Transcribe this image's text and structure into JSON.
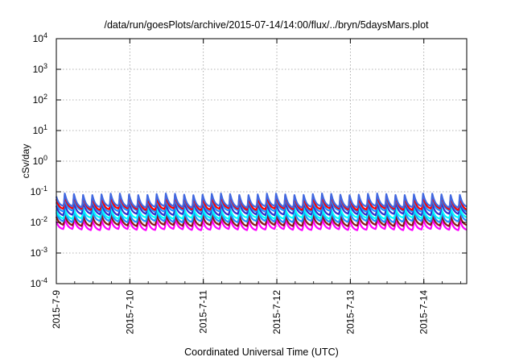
{
  "chart_data": {
    "type": "line",
    "title": "/data/run/goesPlots/archive/2015-07-14/14:00/flux/../bryn/5daysMars.plot",
    "xlabel": "Coordinated Universal Time (UTC)",
    "ylabel": "cSv/day",
    "y_scale": "log",
    "ylim": [
      0.0001,
      10000
    ],
    "y_ticks": [
      {
        "value": 0.0001,
        "base": "10",
        "exp": "-4"
      },
      {
        "value": 0.001,
        "base": "10",
        "exp": "-3"
      },
      {
        "value": 0.01,
        "base": "10",
        "exp": "-2"
      },
      {
        "value": 0.1,
        "base": "10",
        "exp": "-1"
      },
      {
        "value": 1,
        "base": "10",
        "exp": "0"
      },
      {
        "value": 10,
        "base": "10",
        "exp": "1"
      },
      {
        "value": 100,
        "base": "10",
        "exp": "2"
      },
      {
        "value": 1000,
        "base": "10",
        "exp": "3"
      },
      {
        "value": 10000,
        "base": "10",
        "exp": "4"
      }
    ],
    "xlim": [
      "2015-07-09T00:00",
      "2015-07-14T14:00"
    ],
    "x_tick_labels": [
      "2015-7-9",
      "2015-7-10",
      "2015-7-11",
      "2015-7-12",
      "2015-7-13",
      "2015-7-14"
    ],
    "grid": true,
    "approx_peaks_per_day": 8,
    "series": [
      {
        "color": "#ff00ff",
        "baseline": 0.0055,
        "peak": 0.013
      },
      {
        "color": "#8b1a1a",
        "baseline": 0.0075,
        "peak": 0.018
      },
      {
        "color": "#1e90ff",
        "baseline": 0.01,
        "peak": 0.025
      },
      {
        "color": "#00ffff",
        "baseline": 0.013,
        "peak": 0.03
      },
      {
        "color": "#3333cc",
        "baseline": 0.017,
        "peak": 0.045
      },
      {
        "color": "#1e90ff",
        "baseline": 0.022,
        "peak": 0.06
      },
      {
        "color": "#ff0000",
        "baseline": 0.025,
        "peak": 0.075
      },
      {
        "color": "#4169e1",
        "baseline": 0.03,
        "peak": 0.085
      }
    ]
  }
}
